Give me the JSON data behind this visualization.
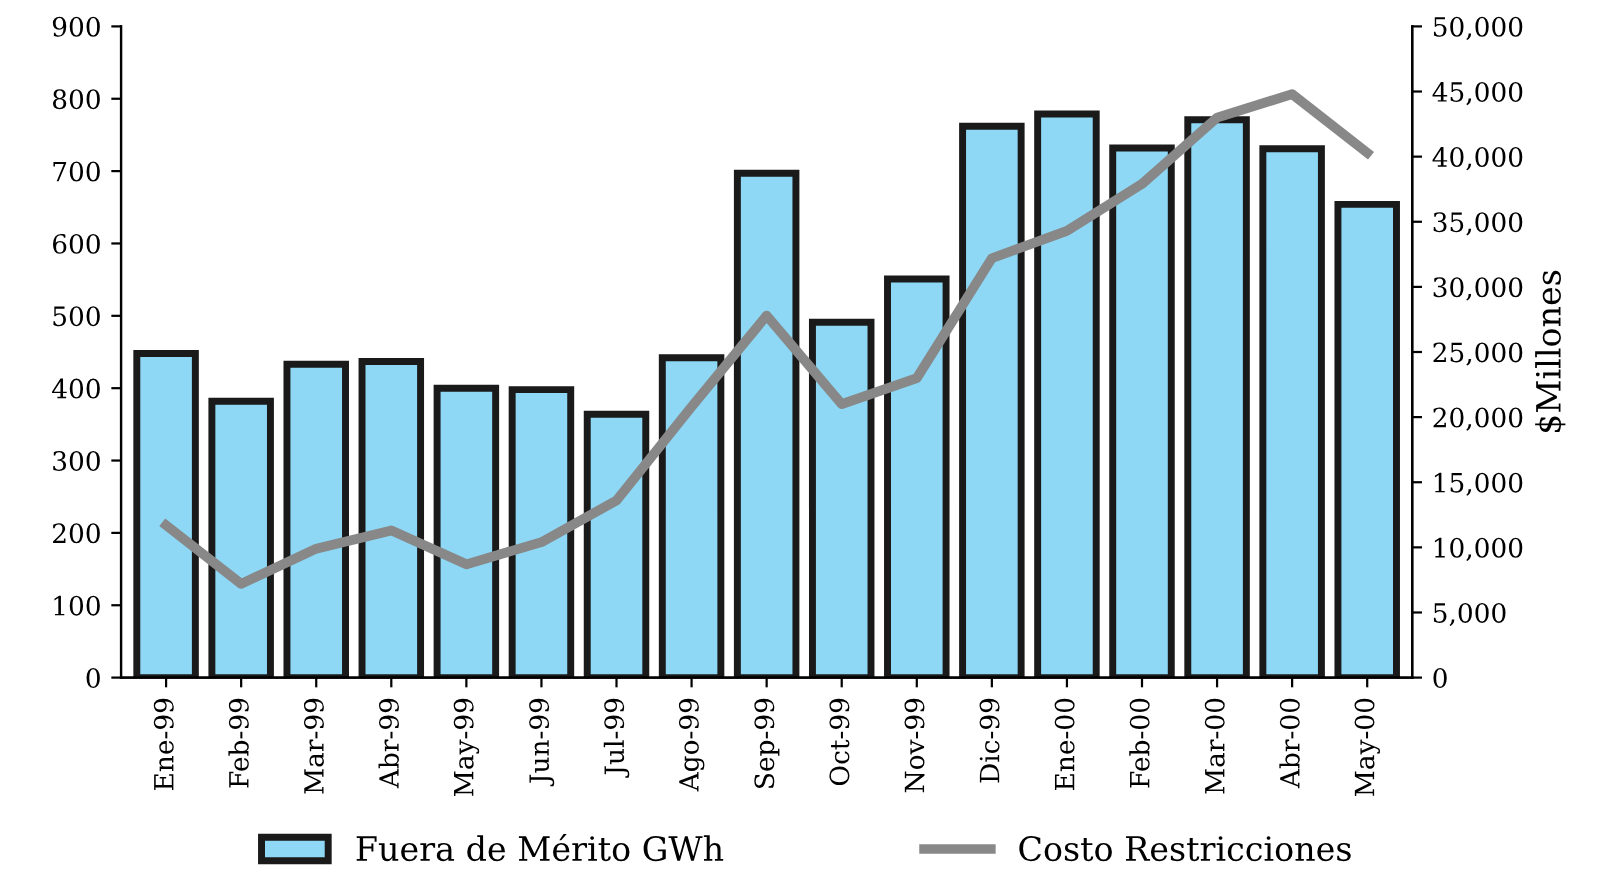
{
  "chart_data": {
    "type": "bar",
    "ylabel": null,
    "y2label": "$Millones",
    "categories": [
      "Ene-99",
      "Feb-99",
      "Mar-99",
      "Abr-99",
      "May-99",
      "Jun-99",
      "Jul-99",
      "Ago-99",
      "Sep-99",
      "Oct-99",
      "Nov-99",
      "Dic-99",
      "Ene-00",
      "Feb-00",
      "Mar-00",
      "Abr-00",
      "May-00"
    ],
    "series": [
      {
        "name": "Fuera de Mérito GWh",
        "color": "#8ed8f5",
        "values": [
          448,
          382,
          433,
          437,
          400,
          398,
          364,
          442,
          697,
          491,
          551,
          762,
          779,
          732,
          771,
          731,
          654
        ]
      },
      {
        "name": "Costo Restricciones",
        "type": "line",
        "axis": "y2",
        "color": "#888888",
        "values": [
          11700,
          7200,
          9900,
          11300,
          8700,
          10400,
          13600,
          20800,
          27800,
          21000,
          23000,
          32200,
          34300,
          37900,
          43000,
          44800,
          40300
        ]
      }
    ],
    "ylim": [
      0,
      900
    ],
    "yticks": [
      0,
      100,
      200,
      300,
      400,
      500,
      600,
      700,
      800,
      900
    ],
    "y2lim": [
      0,
      50000
    ],
    "y2ticks": [
      {
        "value": 0,
        "label": "0"
      },
      {
        "value": 5000,
        "label": "5,000"
      },
      {
        "value": 10000,
        "label": "10,000"
      },
      {
        "value": 15000,
        "label": "15,000"
      },
      {
        "value": 20000,
        "label": "20,000"
      },
      {
        "value": 25000,
        "label": "25,000"
      },
      {
        "value": 30000,
        "label": "30,000"
      },
      {
        "value": 35000,
        "label": "35,000"
      },
      {
        "value": 40000,
        "label": "40,000"
      },
      {
        "value": 45000,
        "label": "45,000"
      },
      {
        "value": 50000,
        "label": "50,000"
      }
    ],
    "grid": false,
    "legend": "bottom"
  }
}
